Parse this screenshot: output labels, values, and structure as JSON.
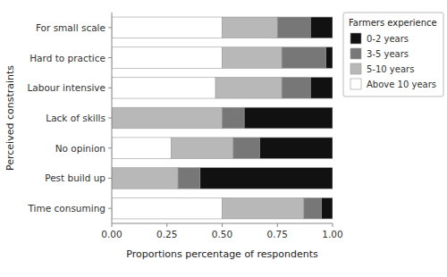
{
  "chart_data": {
    "type": "bar",
    "orientation": "horizontal",
    "stacked": true,
    "categories": [
      "Time consuming",
      "Pest build up",
      "No opinion",
      "Lack of skills",
      "Labour intensive",
      "Hard to practice",
      "For small scale"
    ],
    "series": [
      {
        "name": "Above 10 years",
        "color": "#ffffff",
        "values": [
          0.5,
          0.0,
          0.27,
          0.0,
          0.47,
          0.5,
          0.5
        ]
      },
      {
        "name": "5-10 years",
        "color": "#b8b8b8",
        "values": [
          0.37,
          0.3,
          0.28,
          0.5,
          0.3,
          0.27,
          0.25
        ]
      },
      {
        "name": "3-5 years",
        "color": "#777777",
        "values": [
          0.08,
          0.1,
          0.12,
          0.1,
          0.13,
          0.2,
          0.15
        ]
      },
      {
        "name": "0-2 years",
        "color": "#111111",
        "values": [
          0.05,
          0.6,
          0.33,
          0.4,
          0.1,
          0.03,
          0.1
        ]
      }
    ],
    "legend_title": "Farmers experience",
    "legend": "right",
    "xlabel": "Proportions percentage of respondents",
    "ylabel": "Perceived constraints",
    "xlim": [
      0.0,
      1.0
    ],
    "xticks": [
      {
        "value": 0.0,
        "label": "0.00"
      },
      0.25,
      {
        "value": 0.5,
        "label": "0.50"
      },
      0.75,
      {
        "value": 1.0,
        "label": "1.00"
      }
    ],
    "grid": false
  }
}
